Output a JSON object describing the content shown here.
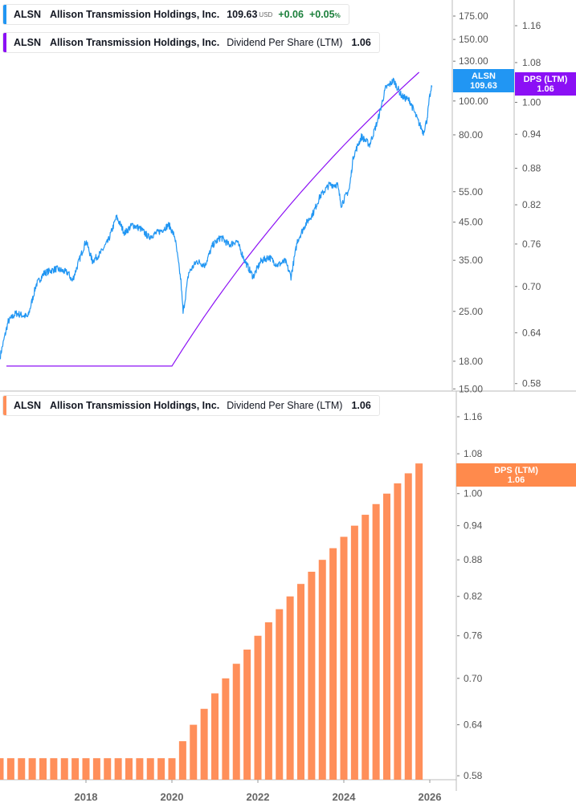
{
  "colors": {
    "price": "#2196F3",
    "dps_line": "#8B10F5",
    "dps_bars": "#FF8F5A",
    "positive": "#1b7f3b"
  },
  "legend_price": {
    "ticker": "ALSN",
    "name": "Allison Transmission Holdings, Inc.",
    "price": "109.63",
    "currency": "USD",
    "change": "+0.06",
    "change_pct": "+0.05",
    "pct_sign": "%"
  },
  "legend_dps_top": {
    "ticker": "ALSN",
    "name": "Allison Transmission Holdings, Inc.",
    "metric": "Dividend Per Share (LTM)",
    "value": "1.06"
  },
  "legend_dps_bottom": {
    "ticker": "ALSN",
    "name": "Allison Transmission Holdings, Inc.",
    "metric": "Dividend Per Share (LTM)",
    "value": "1.06"
  },
  "badges": {
    "price": {
      "label": "ALSN",
      "value": "109.63"
    },
    "dps_top": {
      "label": "DPS (LTM)",
      "value": "1.06"
    },
    "dps_bottom": {
      "label": "DPS (LTM)",
      "value": "1.06"
    }
  },
  "chart_data": [
    {
      "type": "line",
      "title": "",
      "series": [
        {
          "name": "ALSN",
          "x": [
            2016.0,
            2016.19,
            2016.37,
            2016.65,
            2016.84,
            2017.03,
            2017.31,
            2017.59,
            2017.68,
            2017.87,
            2018.0,
            2018.15,
            2018.34,
            2018.52,
            2018.71,
            2018.9,
            2019.08,
            2019.27,
            2019.46,
            2019.74,
            2019.93,
            2020.07,
            2020.21,
            2020.26,
            2020.39,
            2020.58,
            2020.77,
            2020.95,
            2021.14,
            2021.33,
            2021.51,
            2021.7,
            2021.89,
            2022.07,
            2022.26,
            2022.45,
            2022.64,
            2022.77,
            2022.92,
            2023.1,
            2023.29,
            2023.44,
            2023.66,
            2023.85,
            2023.94,
            2024.13,
            2024.22,
            2024.41,
            2024.6,
            2024.79,
            2024.97,
            2025.16,
            2025.35,
            2025.53,
            2025.72,
            2025.85,
            2025.93,
            2026.0,
            2026.05
          ],
          "y": [
            18.5,
            23.4,
            24.7,
            24.1,
            29.8,
            32.2,
            33.1,
            32.2,
            30.5,
            35.8,
            39.8,
            34.8,
            36.7,
            39.8,
            46.6,
            41.9,
            44.2,
            43.1,
            40.8,
            42.5,
            44.2,
            40.8,
            30.5,
            24.7,
            32.2,
            34.8,
            33.9,
            38.7,
            40.8,
            38.7,
            39.8,
            34.8,
            31.4,
            34.8,
            35.8,
            33.9,
            34.8,
            31.4,
            39.8,
            44.2,
            47.9,
            53.2,
            57.6,
            57.6,
            50.5,
            56.1,
            69.3,
            79.1,
            75.0,
            88.0,
            108.7,
            114.6,
            103.1,
            100.4,
            88.0,
            81.3,
            88.0,
            103.1,
            109.63
          ]
        }
      ],
      "yscale": "log",
      "ylim": [
        15,
        180
      ],
      "yticks": [
        "175.00",
        "150.00",
        "130.00",
        "100.00",
        "80.00",
        "55.00",
        "45.00",
        "35.00",
        "25.00",
        "18.00",
        "15.00"
      ]
    },
    {
      "type": "bar",
      "title": "",
      "x": [
        2016.0,
        2016.25,
        2016.5,
        2016.75,
        2017.0,
        2017.25,
        2017.5,
        2017.75,
        2018.0,
        2018.25,
        2018.5,
        2018.75,
        2019.0,
        2019.25,
        2019.5,
        2019.75,
        2020.0,
        2020.25,
        2020.5,
        2020.75,
        2021.0,
        2021.25,
        2021.5,
        2021.75,
        2022.0,
        2022.25,
        2022.5,
        2022.75,
        2023.0,
        2023.25,
        2023.5,
        2023.75,
        2024.0,
        2024.25,
        2024.5,
        2024.75,
        2025.0,
        2025.25,
        2025.5,
        2025.75
      ],
      "values": [
        0.6,
        0.6,
        0.6,
        0.6,
        0.6,
        0.6,
        0.6,
        0.6,
        0.6,
        0.6,
        0.6,
        0.6,
        0.6,
        0.6,
        0.6,
        0.6,
        0.6,
        0.62,
        0.64,
        0.66,
        0.68,
        0.7,
        0.72,
        0.74,
        0.76,
        0.78,
        0.8,
        0.82,
        0.84,
        0.86,
        0.88,
        0.9,
        0.92,
        0.94,
        0.96,
        0.98,
        1.0,
        1.02,
        1.04,
        1.06
      ],
      "series_name": "Dividend Per Share (LTM)",
      "yscale": "log",
      "ylim": [
        0.57,
        1.2
      ],
      "yticks": [
        "1.16",
        "1.08",
        "1.00",
        "0.94",
        "0.88",
        "0.82",
        "0.76",
        "0.70",
        "0.64",
        "0.58"
      ],
      "xticks": [
        "2018",
        "2020",
        "2022",
        "2024",
        "2026"
      ]
    }
  ]
}
